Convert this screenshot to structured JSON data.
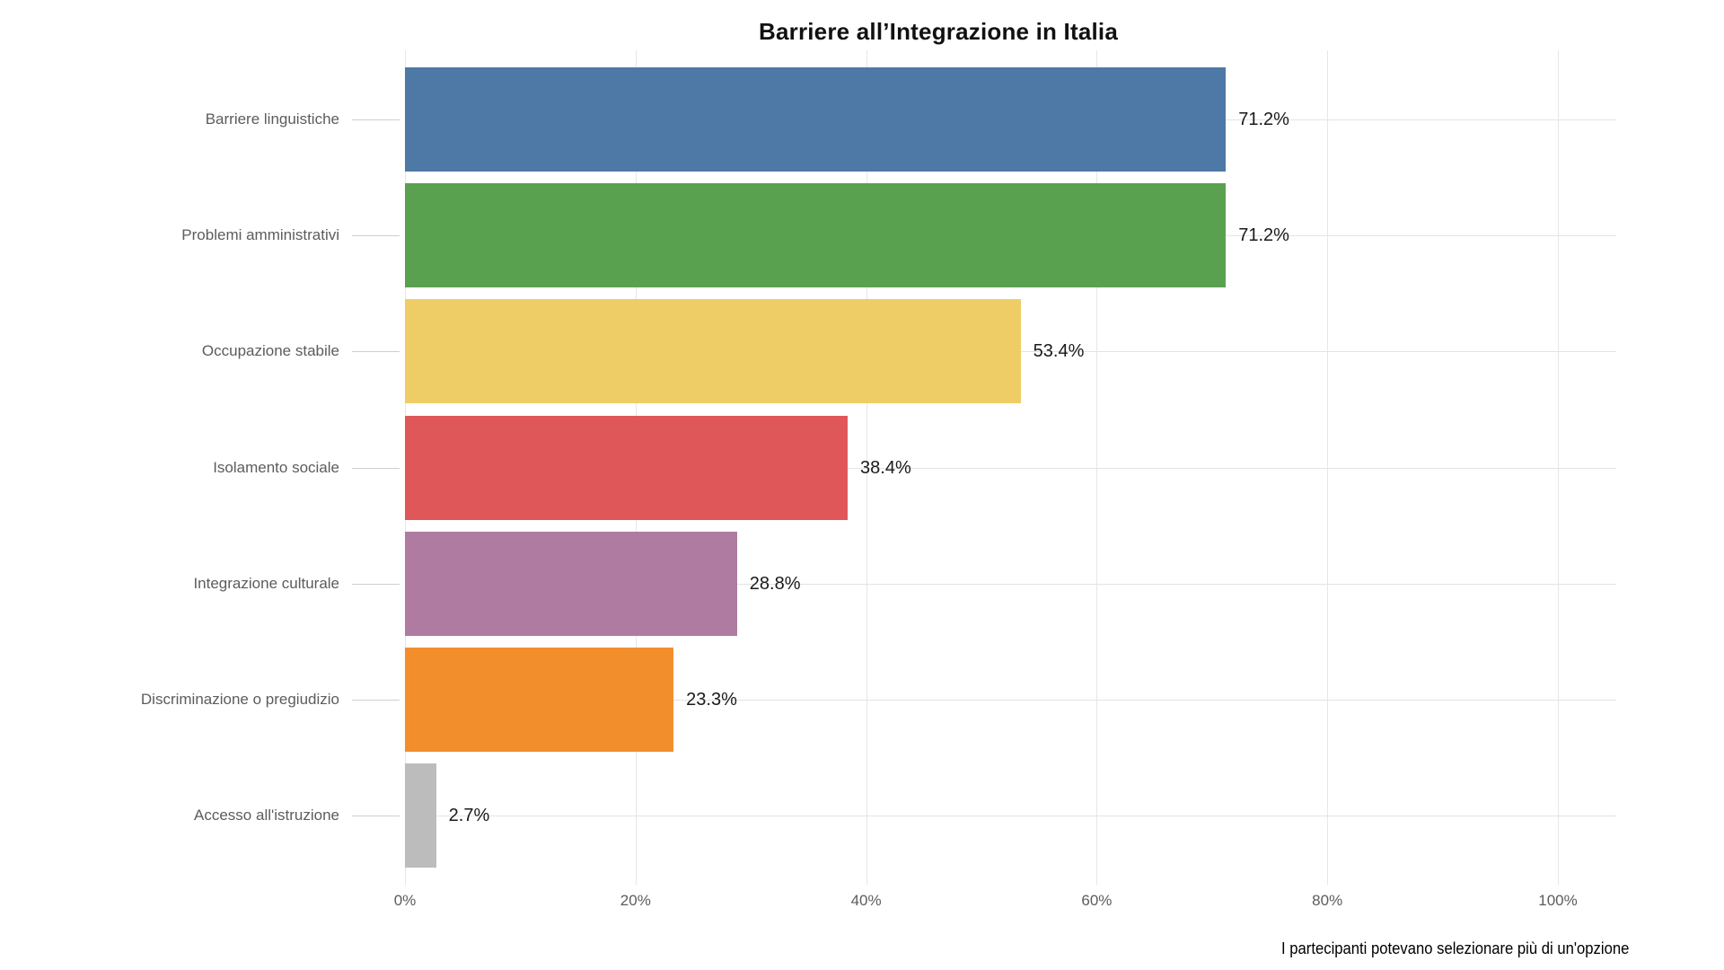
{
  "chart_data": {
    "type": "bar",
    "orientation": "horizontal",
    "title": "Barriere all’Integrazione in Italia",
    "caption": "I partecipanti potevano selezionare più di un'opzione",
    "categories": [
      "Barriere linguistiche",
      "Problemi amministrativi",
      "Occupazione stabile",
      "Isolamento sociale",
      "Integrazione culturale",
      "Discriminazione o pregiudizio",
      "Accesso all'istruzione"
    ],
    "values": [
      71.2,
      71.2,
      53.4,
      38.4,
      28.8,
      23.3,
      2.7
    ],
    "value_labels": [
      "71.2%",
      "71.2%",
      "53.4%",
      "38.4%",
      "28.8%",
      "23.3%",
      "2.7%"
    ],
    "bar_colors": [
      "#4e79a7",
      "#59a14f",
      "#eecd66",
      "#e05759",
      "#af7ba1",
      "#f28e2c",
      "#bcbcbc"
    ],
    "x_tick_labels": [
      "0%",
      "20%",
      "40%",
      "60%",
      "80%",
      "100%"
    ],
    "x_tick_values": [
      0,
      20,
      40,
      60,
      80,
      100
    ],
    "xlim": [
      0,
      105
    ],
    "xlabel": "",
    "ylabel": "",
    "grid": "on",
    "legend": "none",
    "colors": {
      "grid_line": "#e5e5e5",
      "axis_tick": "#cfcfcf",
      "axis_text": "#5c5c5c",
      "value_text": "#1a1a1a",
      "title_text": "#111111",
      "background": "#ffffff"
    }
  }
}
